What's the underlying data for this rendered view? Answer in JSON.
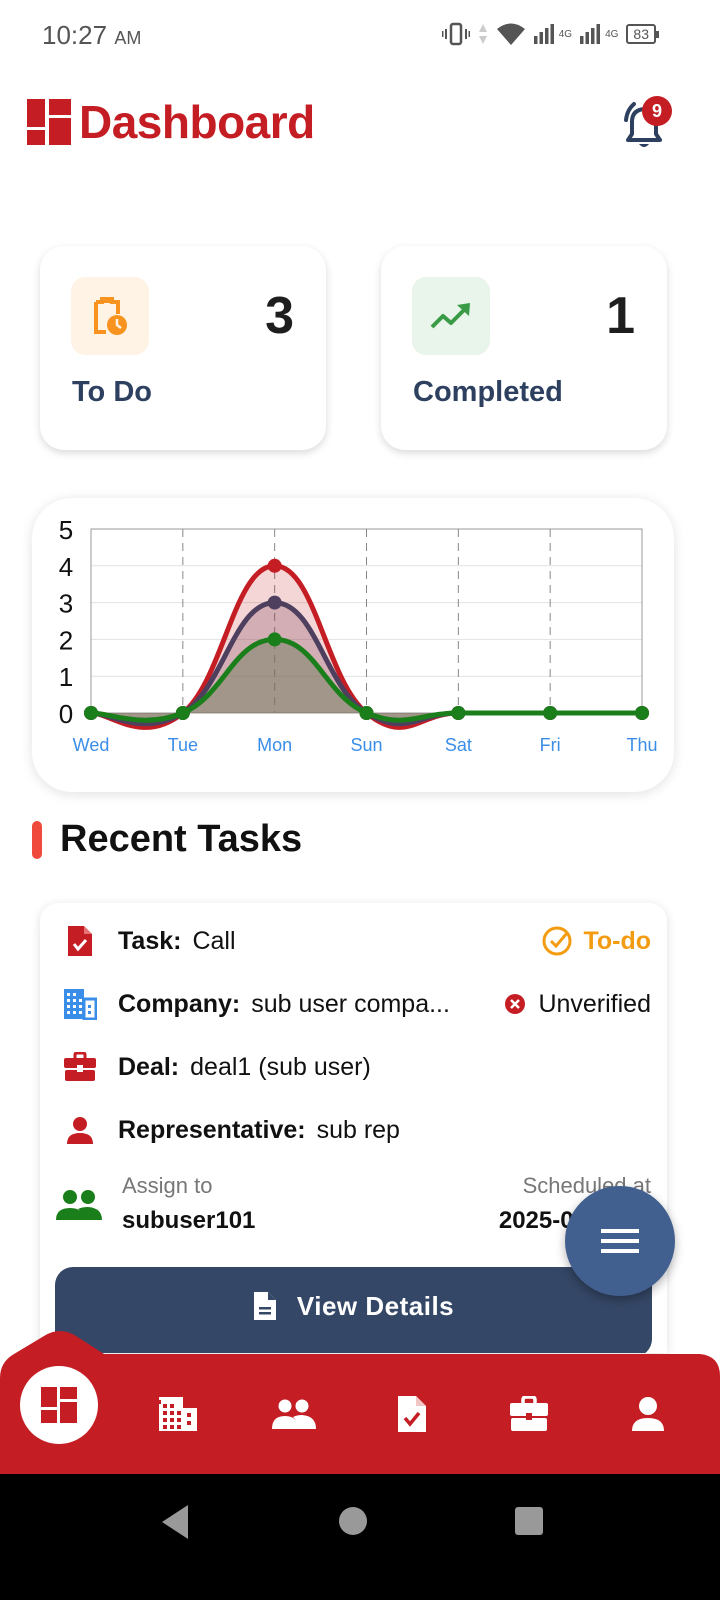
{
  "status_bar": {
    "time": "10:27",
    "ampm": "AM",
    "network_1": "4G",
    "network_2": "4G",
    "battery": "83",
    "icons": [
      "vibrate-icon",
      "data-activity-icon",
      "wifi-icon",
      "signal-icon",
      "signal-icon",
      "battery-icon"
    ]
  },
  "header": {
    "title": "Dashboard",
    "notification_count": "9"
  },
  "stats": [
    {
      "label": "To Do",
      "value": "3",
      "icon": "clipboard-clock-icon",
      "icon_color": "#f7931e",
      "icon_bg": "#fff3e6"
    },
    {
      "label": "Completed",
      "value": "1",
      "icon": "trending-up-icon",
      "icon_color": "#3a9b46",
      "icon_bg": "#e9f4ea"
    }
  ],
  "chart_data": {
    "type": "area",
    "categories": [
      "Wed",
      "Tue",
      "Mon",
      "Sun",
      "Sat",
      "Fri",
      "Thu"
    ],
    "series": [
      {
        "name": "series-red",
        "color": "#c41e24",
        "values": [
          0,
          0,
          4,
          0,
          0,
          0,
          0
        ]
      },
      {
        "name": "series-purple",
        "color": "#4e3f5e",
        "values": [
          0,
          0,
          3,
          0,
          0,
          0,
          0
        ]
      },
      {
        "name": "series-green",
        "color": "#1a7f1a",
        "values": [
          0,
          0,
          2,
          0,
          0,
          0,
          0
        ]
      }
    ],
    "y_ticks": [
      "0",
      "1",
      "2",
      "3",
      "4",
      "5"
    ],
    "ylim": [
      0,
      5
    ],
    "grid": true,
    "vertical_grid": "dashed",
    "title": "",
    "xlabel": "",
    "ylabel": "",
    "legend": "none"
  },
  "recent_tasks": {
    "title": "Recent Tasks",
    "items": [
      {
        "task_label": "Task:",
        "task_value": "Call",
        "status": "To-do",
        "company_label": "Company:",
        "company_value": "sub user compa...",
        "company_status": "Unverified",
        "deal_label": "Deal:",
        "deal_value": "deal1 (sub user)",
        "rep_label": "Representative:",
        "rep_value": "sub rep",
        "assign_label": "Assign to",
        "assign_value": "subuser101",
        "scheduled_label": "Scheduled at",
        "scheduled_value": "2025-06-29 12",
        "button_label": "View Details"
      }
    ]
  },
  "bottom_nav": {
    "items": [
      {
        "name": "dashboard",
        "icon": "dashboard-icon",
        "active": true
      },
      {
        "name": "companies",
        "icon": "building-icon"
      },
      {
        "name": "contacts",
        "icon": "people-icon"
      },
      {
        "name": "tasks",
        "icon": "task-icon"
      },
      {
        "name": "deals",
        "icon": "briefcase-icon"
      },
      {
        "name": "profile",
        "icon": "person-icon"
      }
    ]
  },
  "colors": {
    "brand_red": "#c41e24",
    "navy": "#354766",
    "fab_blue": "#42608f",
    "todo_orange": "#f39c12"
  }
}
